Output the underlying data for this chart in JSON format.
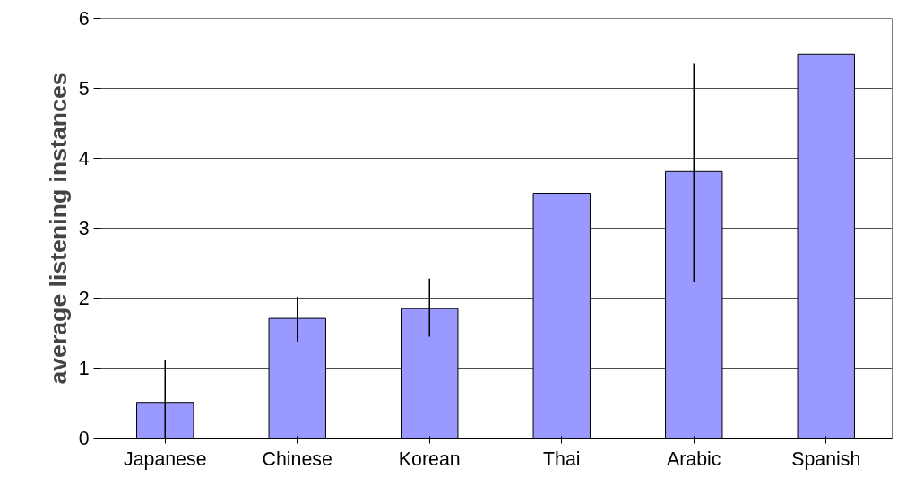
{
  "chart_data": {
    "type": "bar",
    "ylabel": "average listening instances",
    "categories": [
      "Japanese",
      "Chinese",
      "Korean",
      "Thai",
      "Arabic",
      "Spanish"
    ],
    "values": [
      0.51,
      1.71,
      1.85,
      3.5,
      3.81,
      5.49
    ],
    "errors": [
      [
        0,
        1.11
      ],
      [
        1.38,
        2.02
      ],
      [
        1.45,
        2.28
      ],
      null,
      [
        2.23,
        5.36
      ],
      null
    ],
    "color": "#9999ff",
    "ylim": [
      0,
      6
    ],
    "yticks": [
      0,
      1,
      2,
      3,
      4,
      5,
      6
    ],
    "grid": "y"
  }
}
